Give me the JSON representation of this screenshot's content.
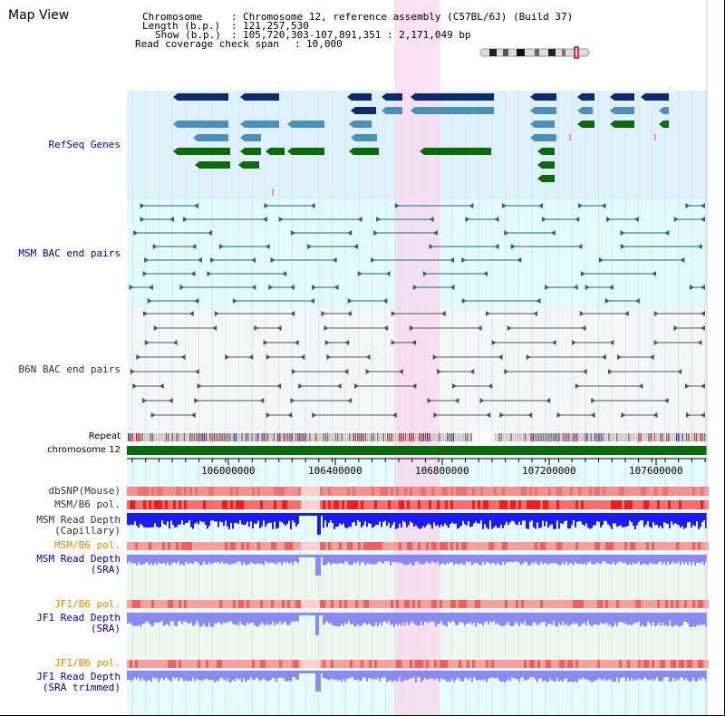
{
  "title": "Map View",
  "header": {
    "chromosome_key": "Chromosome",
    "chromosome_value": "Chromosome 12, reference assembly (C57BL/6J) (Build 37)",
    "length_key": "Length (b.p.)",
    "length_value": "121,257,530",
    "show_key": "Show (b.p.)",
    "show_value": "105,720,303-107,891,351 : 2,171,049 bp",
    "coverage_key": "Read coverage check span",
    "coverage_value": "10,000"
  },
  "tracks": {
    "refseq_genes": "RefSeq Genes",
    "msm_bac": "MSM BAC end pairs",
    "b6n_bac": "B6N BAC end pairs",
    "repeat": "Repeat",
    "chromosome": "chromosome 12",
    "dbsnp": "dbSNP(Mouse)",
    "msm_b6_pol_1": "MSM/B6 pol.",
    "msm_read_depth_cap_1": "MSM Read Depth",
    "msm_read_depth_cap_2": "(Capillary)",
    "msm_b6_pol_2": "MSM/B6 pol.",
    "msm_read_depth_sra_1": "MSM Read Depth",
    "msm_read_depth_sra_2": "(SRA)",
    "jf1_b6_pol_1": "JF1/B6 pol.",
    "jf1_read_depth_sra_1": "JF1 Read Depth",
    "jf1_read_depth_sra_2": "(SRA)",
    "jf1_b6_pol_2": "JF1/B6 pol.",
    "jf1_read_depth_trim_1": "JF1 Read Depth",
    "jf1_read_depth_trim_2": "(SRA trimmed)"
  },
  "axis_ticks": [
    "106000000",
    "106400000",
    "106800000",
    "107200000",
    "107600000"
  ],
  "colors": {
    "gene_dark": "#0d2b6b",
    "gene_mid": "#4a90b8",
    "gene_green": "#0a6b0a",
    "gene_bg": "#dff1fb",
    "bac_msm": "#1b6a8c",
    "bac_b6n": "#555555",
    "highlight": "#f9d7f0",
    "depth_blue": "#1c1cf0",
    "depth_light": "#8a8af0",
    "pol_red": "#f07070",
    "label_blue": "#0000aa",
    "label_orange": "#e08a00"
  },
  "icons": {
    "chromosome_ideogram": "chromosome-ideogram-icon"
  }
}
